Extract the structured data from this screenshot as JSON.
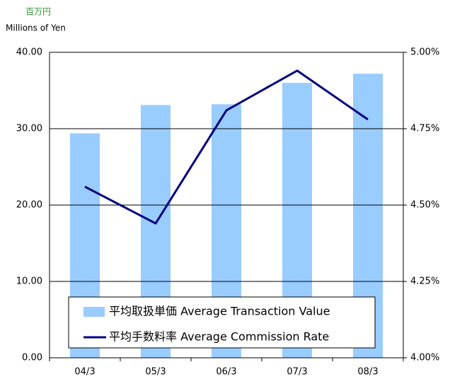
{
  "chart_data": {
    "type": "combo",
    "unit_label": "百万円",
    "unit_label_en": "Millions of Yen",
    "categories": [
      "04/3",
      "05/3",
      "06/3",
      "07/3",
      "08/3"
    ],
    "series": [
      {
        "name": "平均取扱単価 Average Transaction Value",
        "type": "bar",
        "color": "#99ccff",
        "values": [
          29.4,
          33.1,
          33.2,
          36.0,
          37.2
        ]
      },
      {
        "name": "平均手数料率 Average Commission Rate",
        "type": "line",
        "axis": "y2",
        "color": "#000080",
        "values": [
          4.56,
          4.44,
          4.81,
          4.94,
          4.78
        ]
      }
    ],
    "ylim": [
      0,
      40
    ],
    "yticks": [
      {
        "value": 0,
        "label": "0.00"
      },
      {
        "value": 10,
        "label": "10.00"
      },
      {
        "value": 20,
        "label": "20.00"
      },
      {
        "value": 30,
        "label": "30.00"
      },
      {
        "value": 40,
        "label": "40.00"
      }
    ],
    "y2lim": [
      4,
      5
    ],
    "y2ticks": [
      {
        "value": 4,
        "label": "4.00%"
      },
      {
        "value": 4.25,
        "label": "4.25%"
      },
      {
        "value": 4.5,
        "label": "4.50%"
      },
      {
        "value": 4.75,
        "label": "4.75%"
      },
      {
        "value": 5,
        "label": "5.00%"
      }
    ],
    "grid": true,
    "legend": "bottom"
  }
}
